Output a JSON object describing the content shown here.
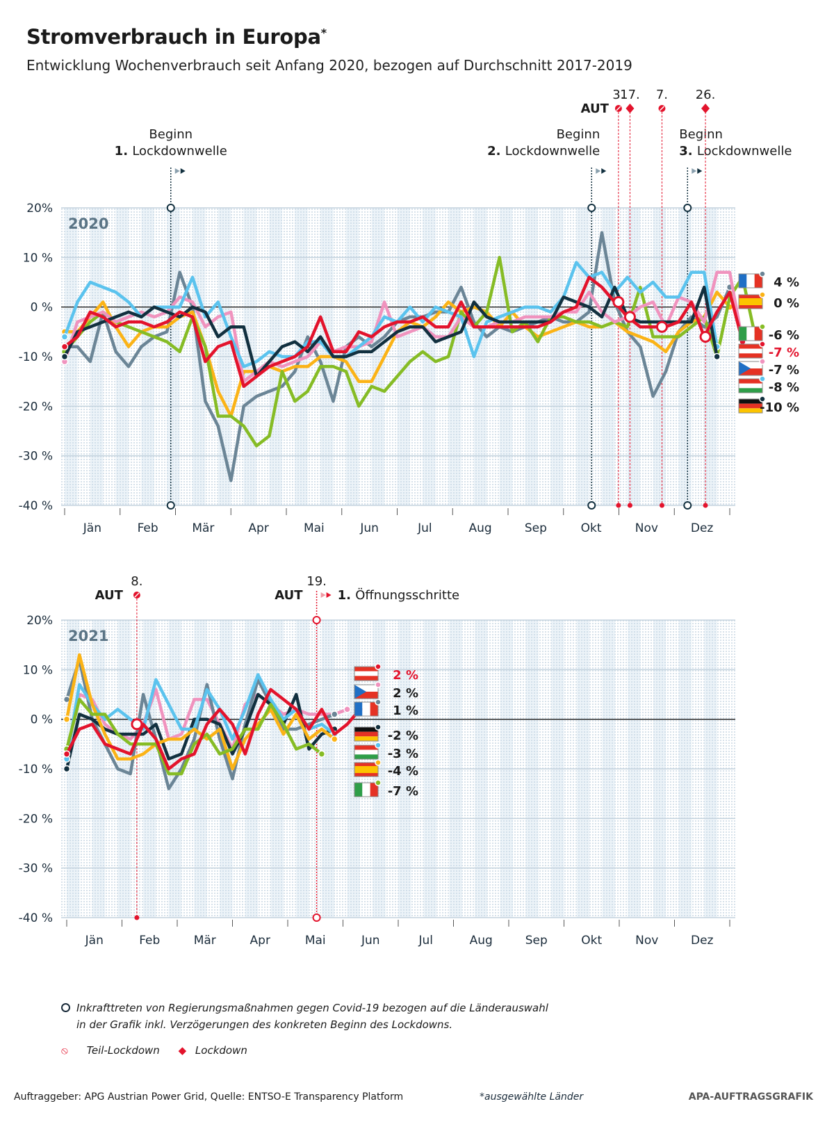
{
  "title": "Stromverbrauch in Europa",
  "title_mark": "*",
  "subtitle": "Entwicklung Wochenverbrauch seit Anfang 2020, bezogen auf Durchschnitt 2017-2019",
  "colors": {
    "FR": "#6b8596",
    "ES": "#fbb316",
    "IT": "#86bc25",
    "AT": "#e3132c",
    "CZ": "#f093be",
    "HU": "#5bc3ee",
    "DE": "#12303f"
  },
  "chart_data": [
    {
      "type": "line",
      "panel": "2020",
      "year_label": "2020",
      "ylim": [
        -40,
        20
      ],
      "yticks": [
        "20%",
        "10 %",
        "0 %",
        "-10 %",
        "-20 %",
        "-30 %",
        "-40 %"
      ],
      "ytick_values": [
        20,
        10,
        0,
        -10,
        -20,
        -30,
        -40
      ],
      "months": [
        "Jän",
        "Feb",
        "Mär",
        "Apr",
        "Mai",
        "Jun",
        "Jul",
        "Aug",
        "Sep",
        "Okt",
        "Nov",
        "Dez"
      ],
      "weeks": 52,
      "series": [
        {
          "name": "FR",
          "end_label": "4 %",
          "values": [
            -8,
            -8,
            -11,
            -1,
            -9,
            -12,
            -8,
            -6,
            -5,
            7,
            0,
            -19,
            -24,
            -35,
            -20,
            -18,
            -17,
            -16,
            -13,
            -6,
            -11,
            -19,
            -8,
            -6,
            -8,
            -6,
            -3,
            -2,
            -2,
            -1,
            -1,
            4,
            -3,
            -6,
            -4,
            -5,
            -4,
            -3,
            -2,
            -3,
            -3,
            -1,
            15,
            1,
            -5,
            -8,
            -18,
            -13,
            -5,
            -2,
            -4,
            -2,
            4
          ]
        },
        {
          "name": "ES",
          "end_label": "0 %",
          "values": [
            -5,
            -5,
            -2,
            1,
            -4,
            -8,
            -5,
            -4,
            -4,
            -2,
            -1,
            -8,
            -17,
            -22,
            -13,
            -13,
            -12,
            -13,
            -12,
            -12,
            -10,
            -10,
            -11,
            -15,
            -15,
            -10,
            -5,
            -3,
            -4,
            -2,
            1,
            -1,
            0,
            -1,
            -4,
            -1,
            -4,
            -6,
            -5,
            -4,
            -3,
            -4,
            -4,
            -3,
            -5,
            -6,
            -7,
            -9,
            -5,
            -3,
            -2,
            3,
            0
          ]
        },
        {
          "name": "IT",
          "end_label": "-6 %",
          "values": [
            -9,
            -6,
            -3,
            -1,
            -3,
            -4,
            -5,
            -6,
            -7,
            -9,
            -2,
            -8,
            -22,
            -22,
            -24,
            -28,
            -26,
            -13,
            -19,
            -17,
            -12,
            -12,
            -13,
            -20,
            -16,
            -17,
            -14,
            -11,
            -9,
            -11,
            -10,
            -1,
            -4,
            -1,
            10,
            -5,
            -3,
            -7,
            -2,
            -2,
            -3,
            -3,
            -4,
            -3,
            -4,
            4,
            -6,
            -6,
            -6,
            -4,
            -2,
            -10,
            2,
            6,
            -6
          ]
        },
        {
          "name": "AT",
          "end_label": "-7 %",
          "values": [
            -8,
            -6,
            -1,
            -2,
            -4,
            -3,
            -3,
            -4,
            -3,
            -1,
            -2,
            -11,
            -8,
            -7,
            -16,
            -14,
            -12,
            -11,
            -10,
            -8,
            -2,
            -9,
            -9,
            -5,
            -6,
            -4,
            -3,
            -3,
            -2,
            -4,
            -4,
            1,
            -4,
            -4,
            -4,
            -4,
            -4,
            -4,
            -3,
            -1,
            0,
            6,
            4,
            1,
            -2,
            -4,
            -4,
            -4,
            -3,
            1,
            -6,
            -1,
            3,
            -7
          ]
        },
        {
          "name": "CZ",
          "end_label": "-7 %",
          "values": [
            -11,
            -3,
            -2,
            -1,
            -3,
            -2,
            -1,
            -2,
            -1,
            2,
            1,
            -4,
            -2,
            -1,
            -15,
            -13,
            -11,
            -12,
            -11,
            -10,
            -7,
            -9,
            -8,
            -8,
            -7,
            1,
            -6,
            -5,
            -4,
            -6,
            -6,
            -2,
            -4,
            -4,
            -3,
            -3,
            -2,
            -2,
            -2,
            -1,
            -1,
            3,
            -1,
            -3,
            -2,
            0,
            1,
            -4,
            2,
            1,
            -3,
            7,
            7,
            -7
          ]
        },
        {
          "name": "HU",
          "end_label": "-8 %",
          "values": [
            -6,
            1,
            5,
            4,
            3,
            1,
            -2,
            0,
            0,
            0,
            6,
            -2,
            1,
            -6,
            -12,
            -11,
            -9,
            -10,
            -10,
            -7,
            -7,
            -10,
            -10,
            -8,
            -6,
            -2,
            -3,
            0,
            -3,
            0,
            -1,
            -2,
            -10,
            -3,
            -2,
            -1,
            0,
            0,
            -1,
            2,
            9,
            6,
            7,
            3,
            6,
            3,
            5,
            2,
            2,
            7,
            7,
            -8
          ]
        },
        {
          "name": "DE",
          "end_label": "-10 %",
          "values": [
            -10,
            -5,
            -4,
            -3,
            -2,
            -1,
            -2,
            0,
            -1,
            -2,
            0,
            -1,
            -6,
            -4,
            -4,
            -14,
            -11,
            -8,
            -7,
            -9,
            -6,
            -10,
            -10,
            -9,
            -9,
            -7,
            -5,
            -4,
            -4,
            -7,
            -6,
            -5,
            1,
            -2,
            -3,
            -3,
            -3,
            -3,
            -3,
            2,
            1,
            0,
            -2,
            4,
            -2,
            -3,
            -3,
            -3,
            -3,
            -3,
            4,
            -10
          ]
        }
      ],
      "events": [
        {
          "label_top": "Beginn",
          "label_bold": "1.",
          "label_rest": "Lockdownwelle",
          "type": "government-measure",
          "week": 8.3
        },
        {
          "label_top": "Beginn",
          "label_bold": "2.",
          "label_rest": "Lockdownwelle",
          "type": "government-measure",
          "week": 41.2
        },
        {
          "label_top": "Beginn",
          "label_bold": "3.",
          "label_rest": "Lockdownwelle",
          "type": "government-measure",
          "week": 48.7
        },
        {
          "aut_date": "3.",
          "type": "teil-lockdown",
          "week": 43.3
        },
        {
          "aut_date": "17.",
          "type": "lockdown",
          "week": 44.2
        },
        {
          "aut_date": "7.",
          "type": "teil-lockdown",
          "week": 46.7
        },
        {
          "aut_date": "26.",
          "type": "lockdown",
          "week": 50.1
        }
      ],
      "aut_label": "AUT"
    },
    {
      "type": "line",
      "panel": "2021",
      "year_label": "2021",
      "ylim": [
        -40,
        20
      ],
      "yticks": [
        "20%",
        "10 %",
        "0 %",
        "-10 %",
        "-20 %",
        "-30 %",
        "-40 %"
      ],
      "ytick_values": [
        20,
        10,
        0,
        -10,
        -20,
        -30,
        -40
      ],
      "months": [
        "Jän",
        "Feb",
        "Mär",
        "Apr",
        "Mai",
        "Jun",
        "Jul",
        "Aug",
        "Sep",
        "Okt",
        "Nov",
        "Dez"
      ],
      "weeks": 52,
      "series": [
        {
          "name": "AT",
          "end_label": "2 %",
          "values": [
            -7,
            -2,
            -1,
            -5,
            -6,
            -7,
            -1,
            -4,
            -10,
            -8,
            -7,
            -1,
            2,
            -1,
            -7,
            1,
            6,
            4,
            2,
            -2,
            2,
            -3,
            -1,
            2
          ]
        },
        {
          "name": "CZ",
          "end_label": "2 %",
          "values": [
            -7,
            5,
            4,
            -1,
            -3,
            -4,
            -1,
            6,
            -4,
            -3,
            4,
            4,
            -1,
            -6,
            3,
            5,
            3,
            1,
            2,
            1,
            1,
            1,
            2
          ]
        },
        {
          "name": "FR",
          "end_label": "1 %",
          "values": [
            4,
            12,
            0,
            -5,
            -10,
            -11,
            5,
            -4,
            -14,
            -10,
            -4,
            7,
            -4,
            -12,
            -1,
            8,
            3,
            -2,
            -2,
            -1,
            0,
            1
          ]
        },
        {
          "name": "DE",
          "end_label": "-2 %",
          "values": [
            -10,
            1,
            0,
            -2,
            -3,
            -3,
            -3,
            -1,
            -8,
            -7,
            0,
            0,
            -1,
            -7,
            -2,
            5,
            3,
            -1,
            5,
            -6,
            -3,
            -2
          ]
        },
        {
          "name": "HU",
          "end_label": "-3 %",
          "values": [
            -8,
            7,
            3,
            0,
            2,
            0,
            -2,
            8,
            3,
            -2,
            -2,
            6,
            2,
            -4,
            2,
            9,
            4,
            0,
            2,
            -2,
            -1,
            -3
          ]
        },
        {
          "name": "ES",
          "end_label": "-4 %",
          "values": [
            0,
            13,
            3,
            -3,
            -8,
            -8,
            -7,
            -5,
            -4,
            -4,
            -2,
            -4,
            -2,
            -10,
            -4,
            -1,
            2,
            -3,
            1,
            -4,
            -2,
            -4
          ]
        },
        {
          "name": "IT",
          "end_label": "-7 %",
          "values": [
            -6,
            4,
            1,
            1,
            -3,
            -5,
            -5,
            -5,
            -11,
            -11,
            -5,
            -3,
            -7,
            -6,
            -2,
            -2,
            3,
            -1,
            -6,
            -5,
            -7
          ]
        }
      ],
      "events": [
        {
          "aut_date": "8.",
          "type": "teil-lockdown",
          "week": 5.5
        },
        {
          "aut_date": "19.",
          "type": "opening",
          "label_bold": "1.",
          "label_rest": "Öffnungsschritte",
          "week": 19.6
        }
      ],
      "aut_label": "AUT"
    }
  ],
  "legend": {
    "measure_note_line1": "Inkrafttreten von Regierungsmaßnahmen gegen Covid-19 bezogen auf die Länderauswahl",
    "measure_note_line2": "in der Grafik inkl. Verzögerungen des konkreten Beginn des Lockdowns.",
    "teil_lockdown": "Teil-Lockdown",
    "lockdown": "Lockdown"
  },
  "footer": {
    "source": "Auftraggeber: APG Austrian Power Grid, Quelle: ENTSO-E Transparency Platform",
    "note": "*ausgewählte Länder",
    "brand": "APA-AUFTRAGSGRAFIK"
  }
}
